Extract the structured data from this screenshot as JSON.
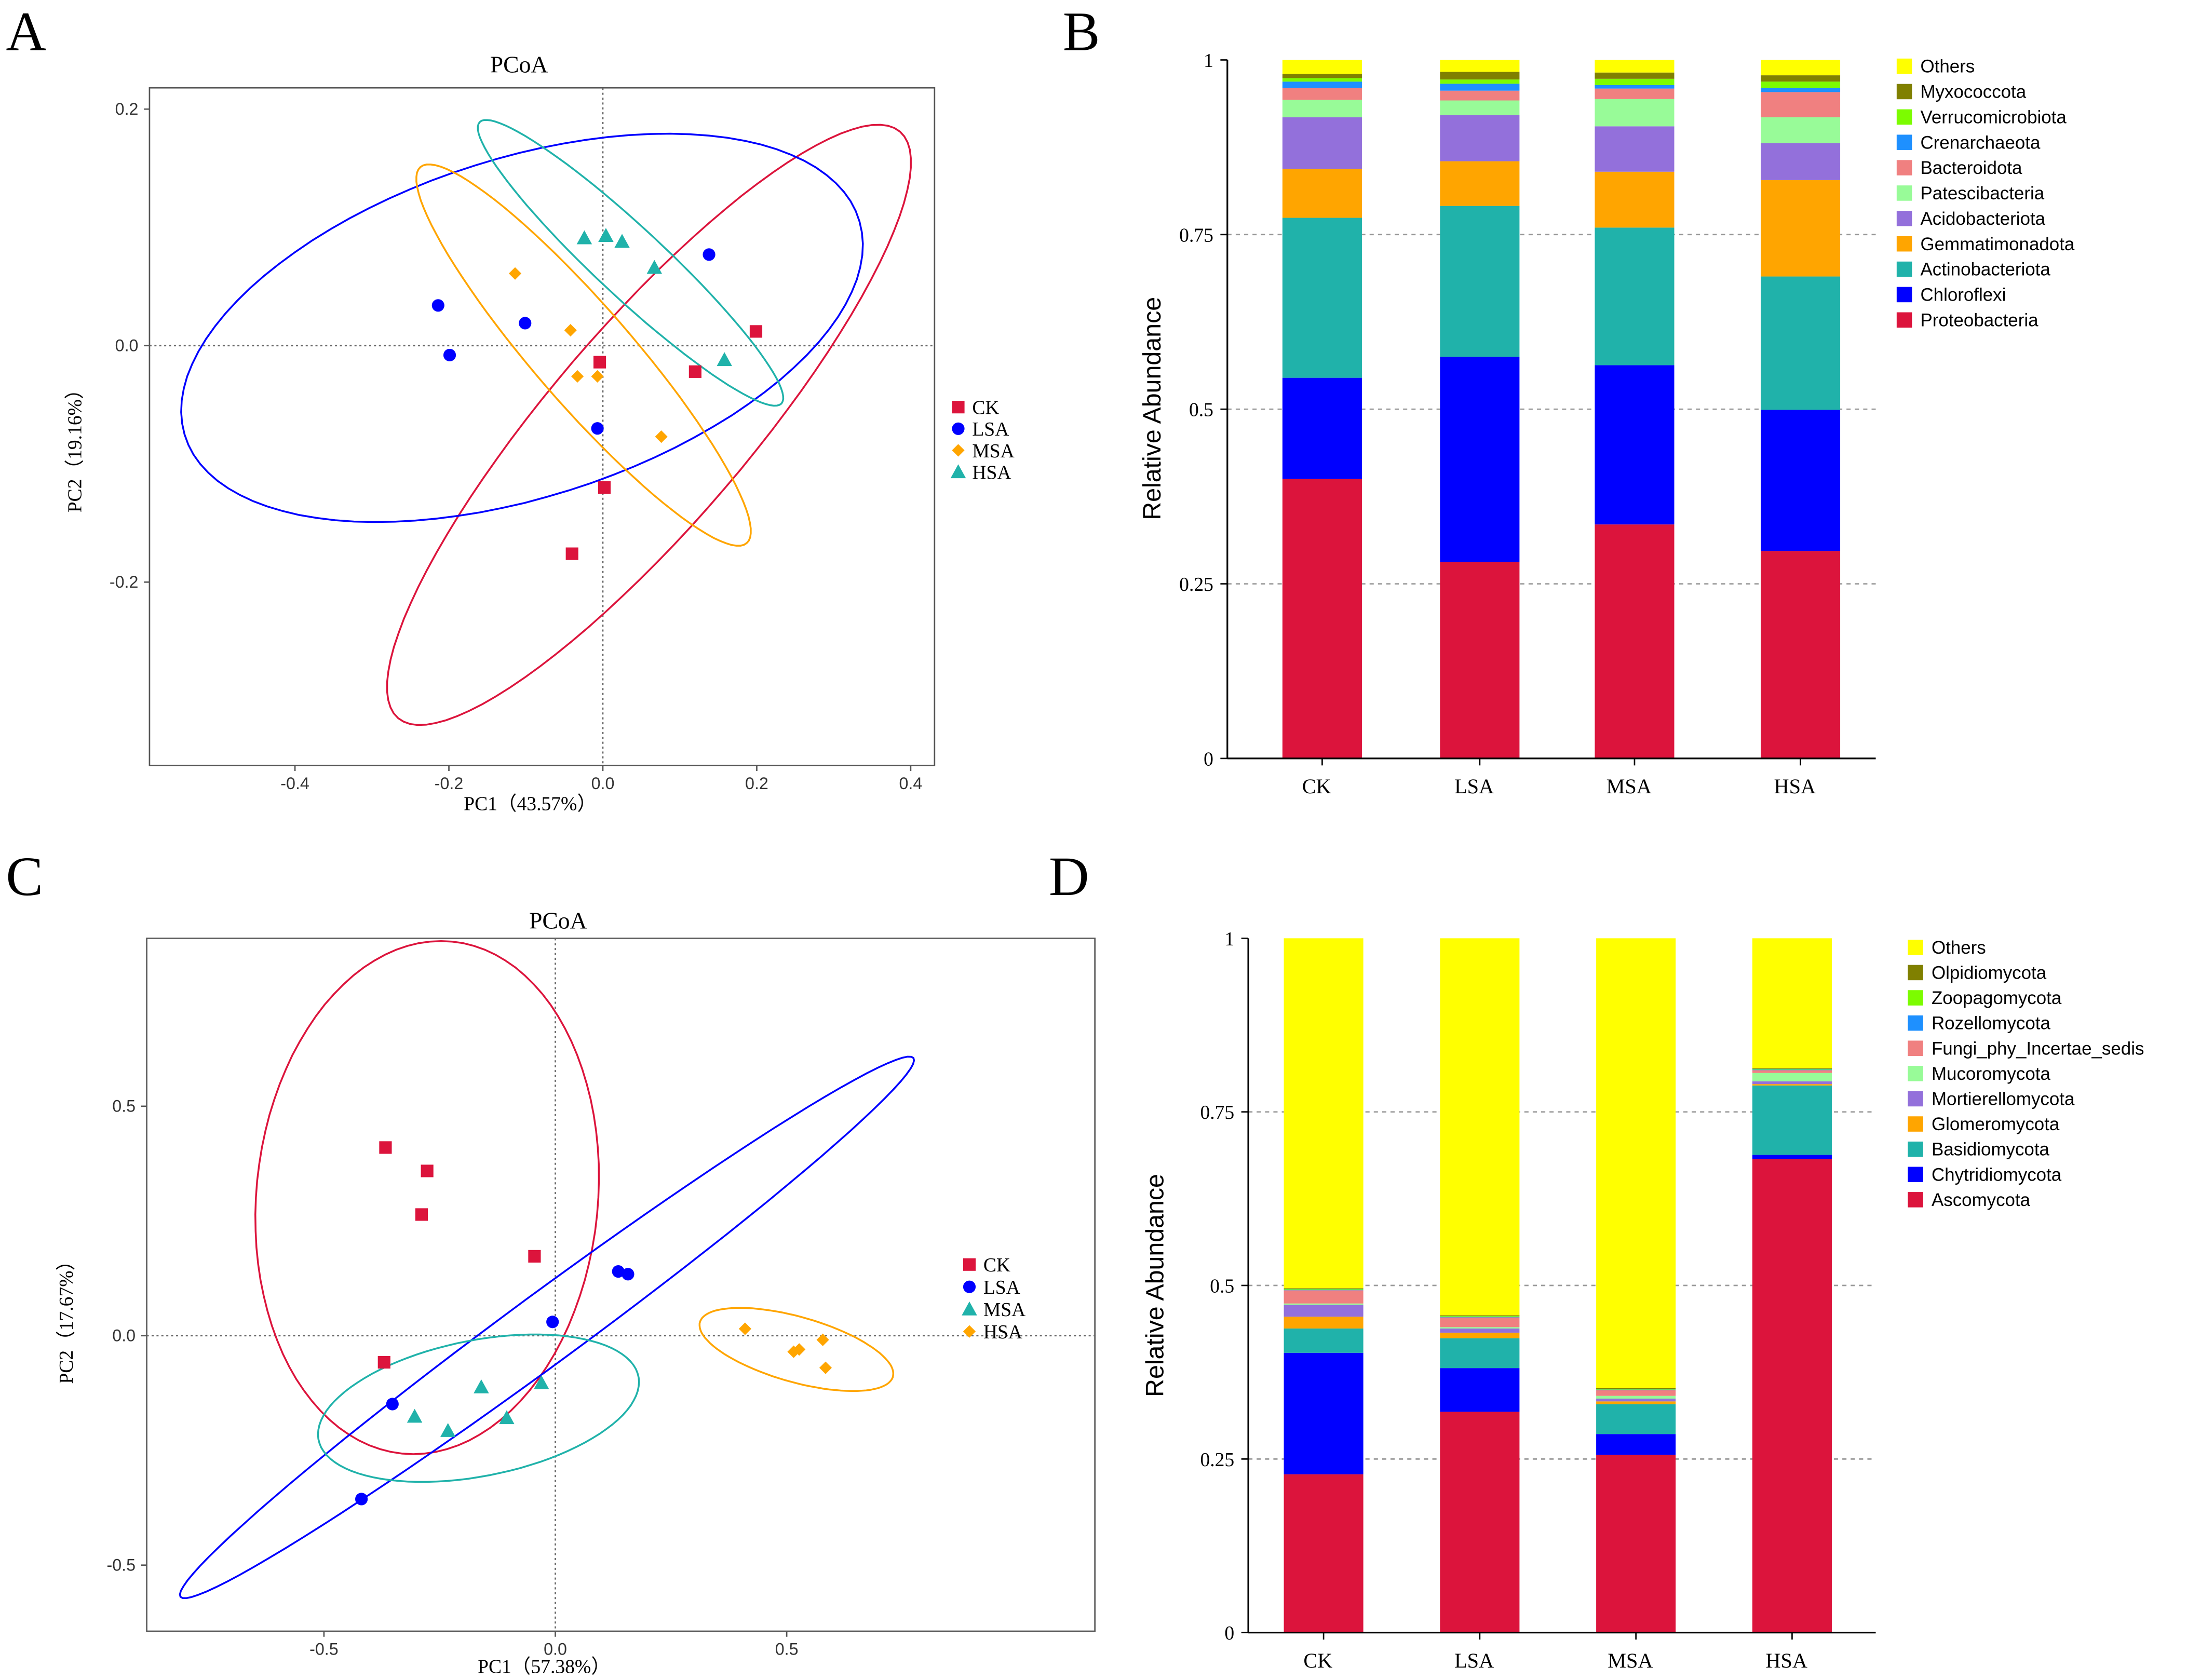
{
  "panel_labels": [
    "A",
    "B",
    "C",
    "D"
  ],
  "chart_data": [
    {
      "type": "scatter",
      "title": "PCoA",
      "xlabel": "PC1（43.57%）",
      "ylabel": "PC2（19.16%）",
      "xlim": [
        -0.589,
        0.431
      ],
      "ylim": [
        -0.355,
        0.218
      ],
      "xticks": [
        -0.4,
        -0.2,
        0.0,
        0.2,
        0.4
      ],
      "xtick_labels": [
        "-0.4",
        "-0.2",
        "0.0",
        "0.2",
        "0.4"
      ],
      "yticks": [
        0.2,
        0.0,
        -0.2
      ],
      "ytick_labels": [
        "0.2",
        "0.0",
        "-0.2"
      ],
      "legend_position": "right",
      "series": [
        {
          "name": "CK",
          "color": "#dc143c",
          "marker": "square",
          "points": [
            [
              0.199,
              0.012
            ],
            [
              0.12,
              -0.022
            ],
            [
              -0.004,
              -0.014
            ],
            [
              0.002,
              -0.12
            ],
            [
              -0.04,
              -0.176
            ]
          ],
          "ellipse": {
            "center": [
              0.06,
              -0.067
            ],
            "u": [
              0.326,
              0.248
            ],
            "v": [
              0.098,
              -0.054
            ]
          }
        },
        {
          "name": "LSA",
          "color": "#0000ff",
          "marker": "circle",
          "points": [
            [
              -0.214,
              0.034
            ],
            [
              -0.199,
              -0.008
            ],
            [
              -0.101,
              0.019
            ],
            [
              0.138,
              0.077
            ],
            [
              -0.007,
              -0.07
            ]
          ],
          "ellipse": {
            "center": [
              -0.105,
              0.015
            ],
            "u": [
              0.435,
              0.041
            ],
            "v": [
              0.083,
              0.159
            ]
          }
        },
        {
          "name": "MSA",
          "color": "#ffa500",
          "marker": "diamond",
          "points": [
            [
              -0.114,
              0.061
            ],
            [
              -0.042,
              0.013
            ],
            [
              -0.033,
              -0.026
            ],
            [
              -0.007,
              -0.026
            ],
            [
              0.076,
              -0.077
            ]
          ],
          "ellipse": {
            "center": [
              -0.025,
              -0.008
            ],
            "u": [
              0.212,
              -0.159
            ],
            "v": [
              0.048,
              0.027
            ]
          }
        },
        {
          "name": "HSA",
          "color": "#20b2aa",
          "marker": "triangle",
          "points": [
            [
              -0.024,
              0.091
            ],
            [
              0.004,
              0.093
            ],
            [
              0.025,
              0.088
            ],
            [
              0.067,
              0.066
            ],
            [
              0.158,
              -0.012
            ]
          ],
          "ellipse": {
            "center": [
              0.036,
              0.07
            ],
            "u": [
              0.196,
              -0.119
            ],
            "v": [
              0.031,
              0.021
            ]
          }
        }
      ]
    },
    {
      "type": "bar",
      "stacked": true,
      "ylabel": "Relative Abundance",
      "ylim": [
        0,
        1
      ],
      "yticks": [
        0,
        0.25,
        0.5,
        0.75,
        1
      ],
      "ytick_labels": [
        "0",
        "0.25",
        "0.5",
        "0.75",
        "1"
      ],
      "grid": true,
      "legend_position": "top-right",
      "categories": [
        "CK",
        "LSA",
        "MSA",
        "HSA"
      ],
      "series": [
        {
          "name": "Proteobacteria",
          "color": "#dc143c",
          "values": [
            0.4,
            0.281,
            0.335,
            0.297
          ]
        },
        {
          "name": "Chloroflexi",
          "color": "#0000ff",
          "values": [
            0.145,
            0.294,
            0.228,
            0.202
          ]
        },
        {
          "name": "Actinobacteriota",
          "color": "#20b2aa",
          "values": [
            0.229,
            0.216,
            0.197,
            0.191
          ]
        },
        {
          "name": "Gemmatimonadota",
          "color": "#ffa500",
          "values": [
            0.07,
            0.064,
            0.08,
            0.138
          ]
        },
        {
          "name": "Acidobacteriota",
          "color": "#9370db",
          "values": [
            0.074,
            0.066,
            0.065,
            0.053
          ]
        },
        {
          "name": "Patescibacteria",
          "color": "#98fb98",
          "values": [
            0.025,
            0.021,
            0.039,
            0.037
          ]
        },
        {
          "name": "Bacteroidota",
          "color": "#f08080",
          "values": [
            0.017,
            0.014,
            0.015,
            0.036
          ]
        },
        {
          "name": "Crenarchaeota",
          "color": "#1e90ff",
          "values": [
            0.009,
            0.01,
            0.005,
            0.006
          ]
        },
        {
          "name": "Verrucomicrobiota",
          "color": "#7cfc00",
          "values": [
            0.005,
            0.006,
            0.009,
            0.009
          ]
        },
        {
          "name": "Myxococcota",
          "color": "#808000",
          "values": [
            0.006,
            0.011,
            0.009,
            0.009
          ]
        },
        {
          "name": "Others",
          "color": "#ffff00",
          "values": [
            0.02,
            0.017,
            0.018,
            0.022
          ]
        }
      ]
    },
    {
      "type": "scatter",
      "title": "PCoA",
      "xlabel": "PC1（57.38%）",
      "ylabel": "PC2（17.67%）",
      "xlim": [
        -0.883,
        1.166
      ],
      "ylim": [
        -0.644,
        0.866
      ],
      "xticks": [
        -0.5,
        0.0,
        0.5
      ],
      "xtick_labels": [
        "-0.5",
        "0.0",
        "0.5"
      ],
      "yticks": [
        0.5,
        0.0,
        -0.5
      ],
      "ytick_labels": [
        "0.5",
        "0.0",
        "-0.5"
      ],
      "legend_position": "right",
      "series": [
        {
          "name": "CK",
          "color": "#dc143c",
          "marker": "square",
          "points": [
            [
              -0.367,
              0.41
            ],
            [
              -0.277,
              0.359
            ],
            [
              -0.289,
              0.264
            ],
            [
              -0.045,
              0.173
            ],
            [
              -0.37,
              -0.058
            ]
          ],
          "ellipse": {
            "center": [
              -0.277,
              0.301
            ],
            "u": [
              0.37,
              0.0
            ],
            "v": [
              0.03,
              0.559
            ]
          }
        },
        {
          "name": "LSA",
          "color": "#0000ff",
          "marker": "circle",
          "points": [
            [
              0.136,
              0.14
            ],
            [
              0.157,
              0.134
            ],
            [
              -0.006,
              0.03
            ],
            [
              -0.352,
              -0.149
            ],
            [
              -0.419,
              -0.356
            ]
          ],
          "ellipse": {
            "center": [
              -0.018,
              0.018
            ],
            "u": [
              0.792,
              0.587
            ],
            "v": [
              0.045,
              -0.061
            ]
          }
        },
        {
          "name": "MSA",
          "color": "#20b2aa",
          "marker": "triangle",
          "points": [
            [
              -0.16,
              -0.112
            ],
            [
              -0.03,
              -0.103
            ],
            [
              -0.105,
              -0.179
            ],
            [
              -0.304,
              -0.176
            ],
            [
              -0.232,
              -0.207
            ]
          ],
          "ellipse": {
            "center": [
              -0.166,
              -0.158
            ],
            "u": [
              0.346,
              0.067
            ],
            "v": [
              0.024,
              -0.146
            ]
          }
        },
        {
          "name": "HSA",
          "color": "#ffa500",
          "marker": "diamond",
          "points": [
            [
              0.41,
              0.015
            ],
            [
              0.515,
              -0.035
            ],
            [
              0.527,
              -0.03
            ],
            [
              0.578,
              -0.009
            ],
            [
              0.584,
              -0.07
            ]
          ],
          "ellipse": {
            "center": [
              0.521,
              -0.03
            ],
            "u": [
              0.208,
              -0.061
            ],
            "v": [
              -0.024,
              -0.067
            ]
          }
        }
      ]
    },
    {
      "type": "bar",
      "stacked": true,
      "ylabel": "Relative Abundance",
      "ylim": [
        0,
        1
      ],
      "yticks": [
        0,
        0.25,
        0.5,
        0.75,
        1
      ],
      "ytick_labels": [
        "0",
        "0.25",
        "0.5",
        "0.75",
        "1"
      ],
      "grid": true,
      "legend_position": "top-right",
      "categories": [
        "CK",
        "LSA",
        "MSA",
        "HSA"
      ],
      "series": [
        {
          "name": "Ascomycota",
          "color": "#dc143c",
          "values": [
            0.228,
            0.318,
            0.256,
            0.682
          ]
        },
        {
          "name": "Chytridiomycota",
          "color": "#0000ff",
          "values": [
            0.175,
            0.063,
            0.03,
            0.006
          ]
        },
        {
          "name": "Basidiomycota",
          "color": "#20b2aa",
          "values": [
            0.035,
            0.043,
            0.043,
            0.1
          ]
        },
        {
          "name": "Glomeromycota",
          "color": "#ffa500",
          "values": [
            0.017,
            0.008,
            0.004,
            0.002
          ]
        },
        {
          "name": "Mortierellomycota",
          "color": "#9370db",
          "values": [
            0.017,
            0.006,
            0.004,
            0.004
          ]
        },
        {
          "name": "Mucoromycota",
          "color": "#98fb98",
          "values": [
            0.002,
            0.002,
            0.004,
            0.012
          ]
        },
        {
          "name": "Fungi_phy_Incertae_sedis",
          "color": "#f08080",
          "values": [
            0.019,
            0.014,
            0.008,
            0.004
          ]
        },
        {
          "name": "Rozellomycota",
          "color": "#1e90ff",
          "values": [
            0.001,
            0.001,
            0.001,
            0.001
          ]
        },
        {
          "name": "Zoopagomycota",
          "color": "#7cfc00",
          "values": [
            0.001,
            0.001,
            0.001,
            0.001
          ]
        },
        {
          "name": "Olpidiomycota",
          "color": "#808000",
          "values": [
            0.001,
            0.001,
            0.001,
            0.001
          ]
        },
        {
          "name": "Others",
          "color": "#ffff00",
          "values": [
            0.504,
            0.545,
            0.648,
            0.187
          ]
        }
      ]
    }
  ]
}
